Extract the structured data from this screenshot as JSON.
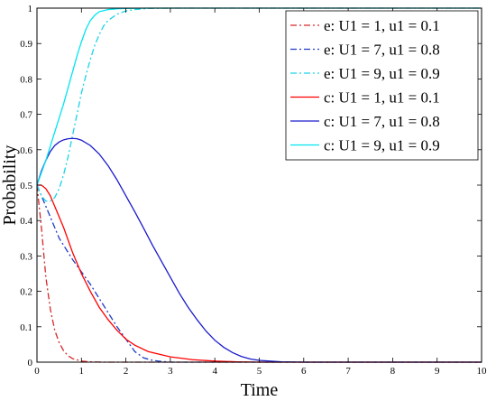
{
  "chart_data": {
    "type": "line",
    "title": "",
    "xlabel": "Time",
    "ylabel": "Probability",
    "xlim": [
      0,
      10
    ],
    "ylim": [
      0,
      1
    ],
    "xticks": [
      0,
      1,
      2,
      3,
      4,
      5,
      6,
      7,
      8,
      9,
      10
    ],
    "yticks": [
      0,
      0.1,
      0.2,
      0.3,
      0.4,
      0.5,
      0.6,
      0.7,
      0.8,
      0.9,
      1
    ],
    "xtick_labels": [
      "0",
      "1",
      "2",
      "3",
      "4",
      "5",
      "6",
      "7",
      "8",
      "9",
      "10"
    ],
    "ytick_labels": [
      "0",
      "0.1",
      "0.2",
      "0.3",
      "0.4",
      "0.5",
      "0.6",
      "0.7",
      "0.8",
      "0.9",
      "1"
    ],
    "grid": false,
    "legend_position": "top-right",
    "series": [
      {
        "name": "e: U1 = 1, u1 = 0.1",
        "color": "#d62728",
        "style": "dashdot",
        "x": [
          0,
          0.05,
          0.1,
          0.15,
          0.2,
          0.3,
          0.4,
          0.5,
          0.6,
          0.7,
          0.8,
          1.0,
          1.2,
          1.5,
          2.0,
          3,
          4,
          5,
          6,
          7,
          8,
          9,
          10
        ],
        "y": [
          0.5,
          0.44,
          0.38,
          0.31,
          0.24,
          0.15,
          0.09,
          0.055,
          0.032,
          0.018,
          0.01,
          0.003,
          0.001,
          0.0,
          0,
          0,
          0,
          0,
          0,
          0,
          0,
          0,
          0
        ]
      },
      {
        "name": "e: U1 = 7, u1 = 0.8",
        "color": "#1f3cc4",
        "style": "dashdot",
        "x": [
          0,
          0.1,
          0.2,
          0.3,
          0.4,
          0.5,
          0.6,
          0.8,
          1.0,
          1.2,
          1.4,
          1.6,
          1.8,
          2.0,
          2.2,
          2.4,
          2.6,
          2.8,
          3.0,
          4,
          5,
          6,
          7,
          8,
          9,
          10
        ],
        "y": [
          0.5,
          0.47,
          0.44,
          0.41,
          0.38,
          0.35,
          0.33,
          0.29,
          0.255,
          0.22,
          0.18,
          0.14,
          0.1,
          0.065,
          0.03,
          0.012,
          0.005,
          0.002,
          0.0,
          0,
          0,
          0,
          0,
          0,
          0,
          0
        ]
      },
      {
        "name": "e: U1 = 9, u1 = 0.9",
        "color": "#17d4e6",
        "style": "dashdot",
        "x": [
          0,
          0.1,
          0.2,
          0.3,
          0.4,
          0.5,
          0.6,
          0.7,
          0.8,
          0.9,
          1.0,
          1.1,
          1.2,
          1.3,
          1.4,
          1.5,
          1.6,
          1.8,
          2.0,
          2.2,
          2.5,
          3,
          4,
          5,
          6,
          7,
          8,
          9,
          10
        ],
        "y": [
          0.5,
          0.47,
          0.455,
          0.455,
          0.465,
          0.49,
          0.53,
          0.58,
          0.64,
          0.7,
          0.76,
          0.81,
          0.855,
          0.895,
          0.925,
          0.95,
          0.965,
          0.983,
          0.992,
          0.996,
          0.999,
          1,
          1,
          1,
          1,
          1,
          1,
          1,
          1
        ]
      },
      {
        "name": "c: U1 = 1, u1 = 0.1",
        "color": "#ff0000",
        "style": "solid",
        "x": [
          0,
          0.1,
          0.2,
          0.3,
          0.4,
          0.5,
          0.6,
          0.8,
          1.0,
          1.2,
          1.4,
          1.6,
          1.8,
          2.0,
          2.2,
          2.5,
          3.0,
          3.5,
          4.0,
          4.5,
          5,
          6,
          7,
          8,
          9,
          10
        ],
        "y": [
          0.5,
          0.5,
          0.49,
          0.47,
          0.44,
          0.41,
          0.38,
          0.31,
          0.25,
          0.2,
          0.155,
          0.12,
          0.09,
          0.065,
          0.048,
          0.03,
          0.015,
          0.007,
          0.003,
          0.001,
          0.0,
          0,
          0,
          0,
          0,
          0
        ]
      },
      {
        "name": "c: U1 = 7, u1 = 0.8",
        "color": "#1a1acc",
        "style": "solid",
        "x": [
          0,
          0.1,
          0.2,
          0.3,
          0.4,
          0.5,
          0.6,
          0.7,
          0.8,
          0.9,
          1.0,
          1.2,
          1.4,
          1.6,
          1.8,
          2.0,
          2.2,
          2.4,
          2.6,
          2.8,
          3.0,
          3.2,
          3.4,
          3.6,
          3.8,
          4.0,
          4.2,
          4.4,
          4.6,
          4.8,
          5.0,
          5.5,
          6,
          7,
          8,
          9,
          10
        ],
        "y": [
          0.5,
          0.54,
          0.57,
          0.595,
          0.612,
          0.622,
          0.628,
          0.631,
          0.632,
          0.631,
          0.627,
          0.612,
          0.588,
          0.555,
          0.515,
          0.47,
          0.425,
          0.378,
          0.33,
          0.285,
          0.24,
          0.195,
          0.155,
          0.12,
          0.088,
          0.062,
          0.042,
          0.027,
          0.016,
          0.009,
          0.005,
          0.001,
          0.0,
          0,
          0,
          0,
          0
        ]
      },
      {
        "name": "c: U1 = 9, u1 = 0.9",
        "color": "#00e5f0",
        "style": "solid",
        "x": [
          0,
          0.1,
          0.2,
          0.3,
          0.4,
          0.5,
          0.6,
          0.7,
          0.8,
          0.9,
          1.0,
          1.1,
          1.2,
          1.3,
          1.4,
          1.6,
          1.8,
          2.0,
          2.5,
          3,
          4,
          5,
          6,
          7,
          8,
          9,
          10
        ],
        "y": [
          0.5,
          0.535,
          0.57,
          0.61,
          0.65,
          0.69,
          0.73,
          0.775,
          0.82,
          0.865,
          0.905,
          0.94,
          0.965,
          0.98,
          0.99,
          0.996,
          0.998,
          0.999,
          1,
          1,
          1,
          1,
          1,
          1,
          1,
          1,
          1
        ]
      }
    ]
  }
}
